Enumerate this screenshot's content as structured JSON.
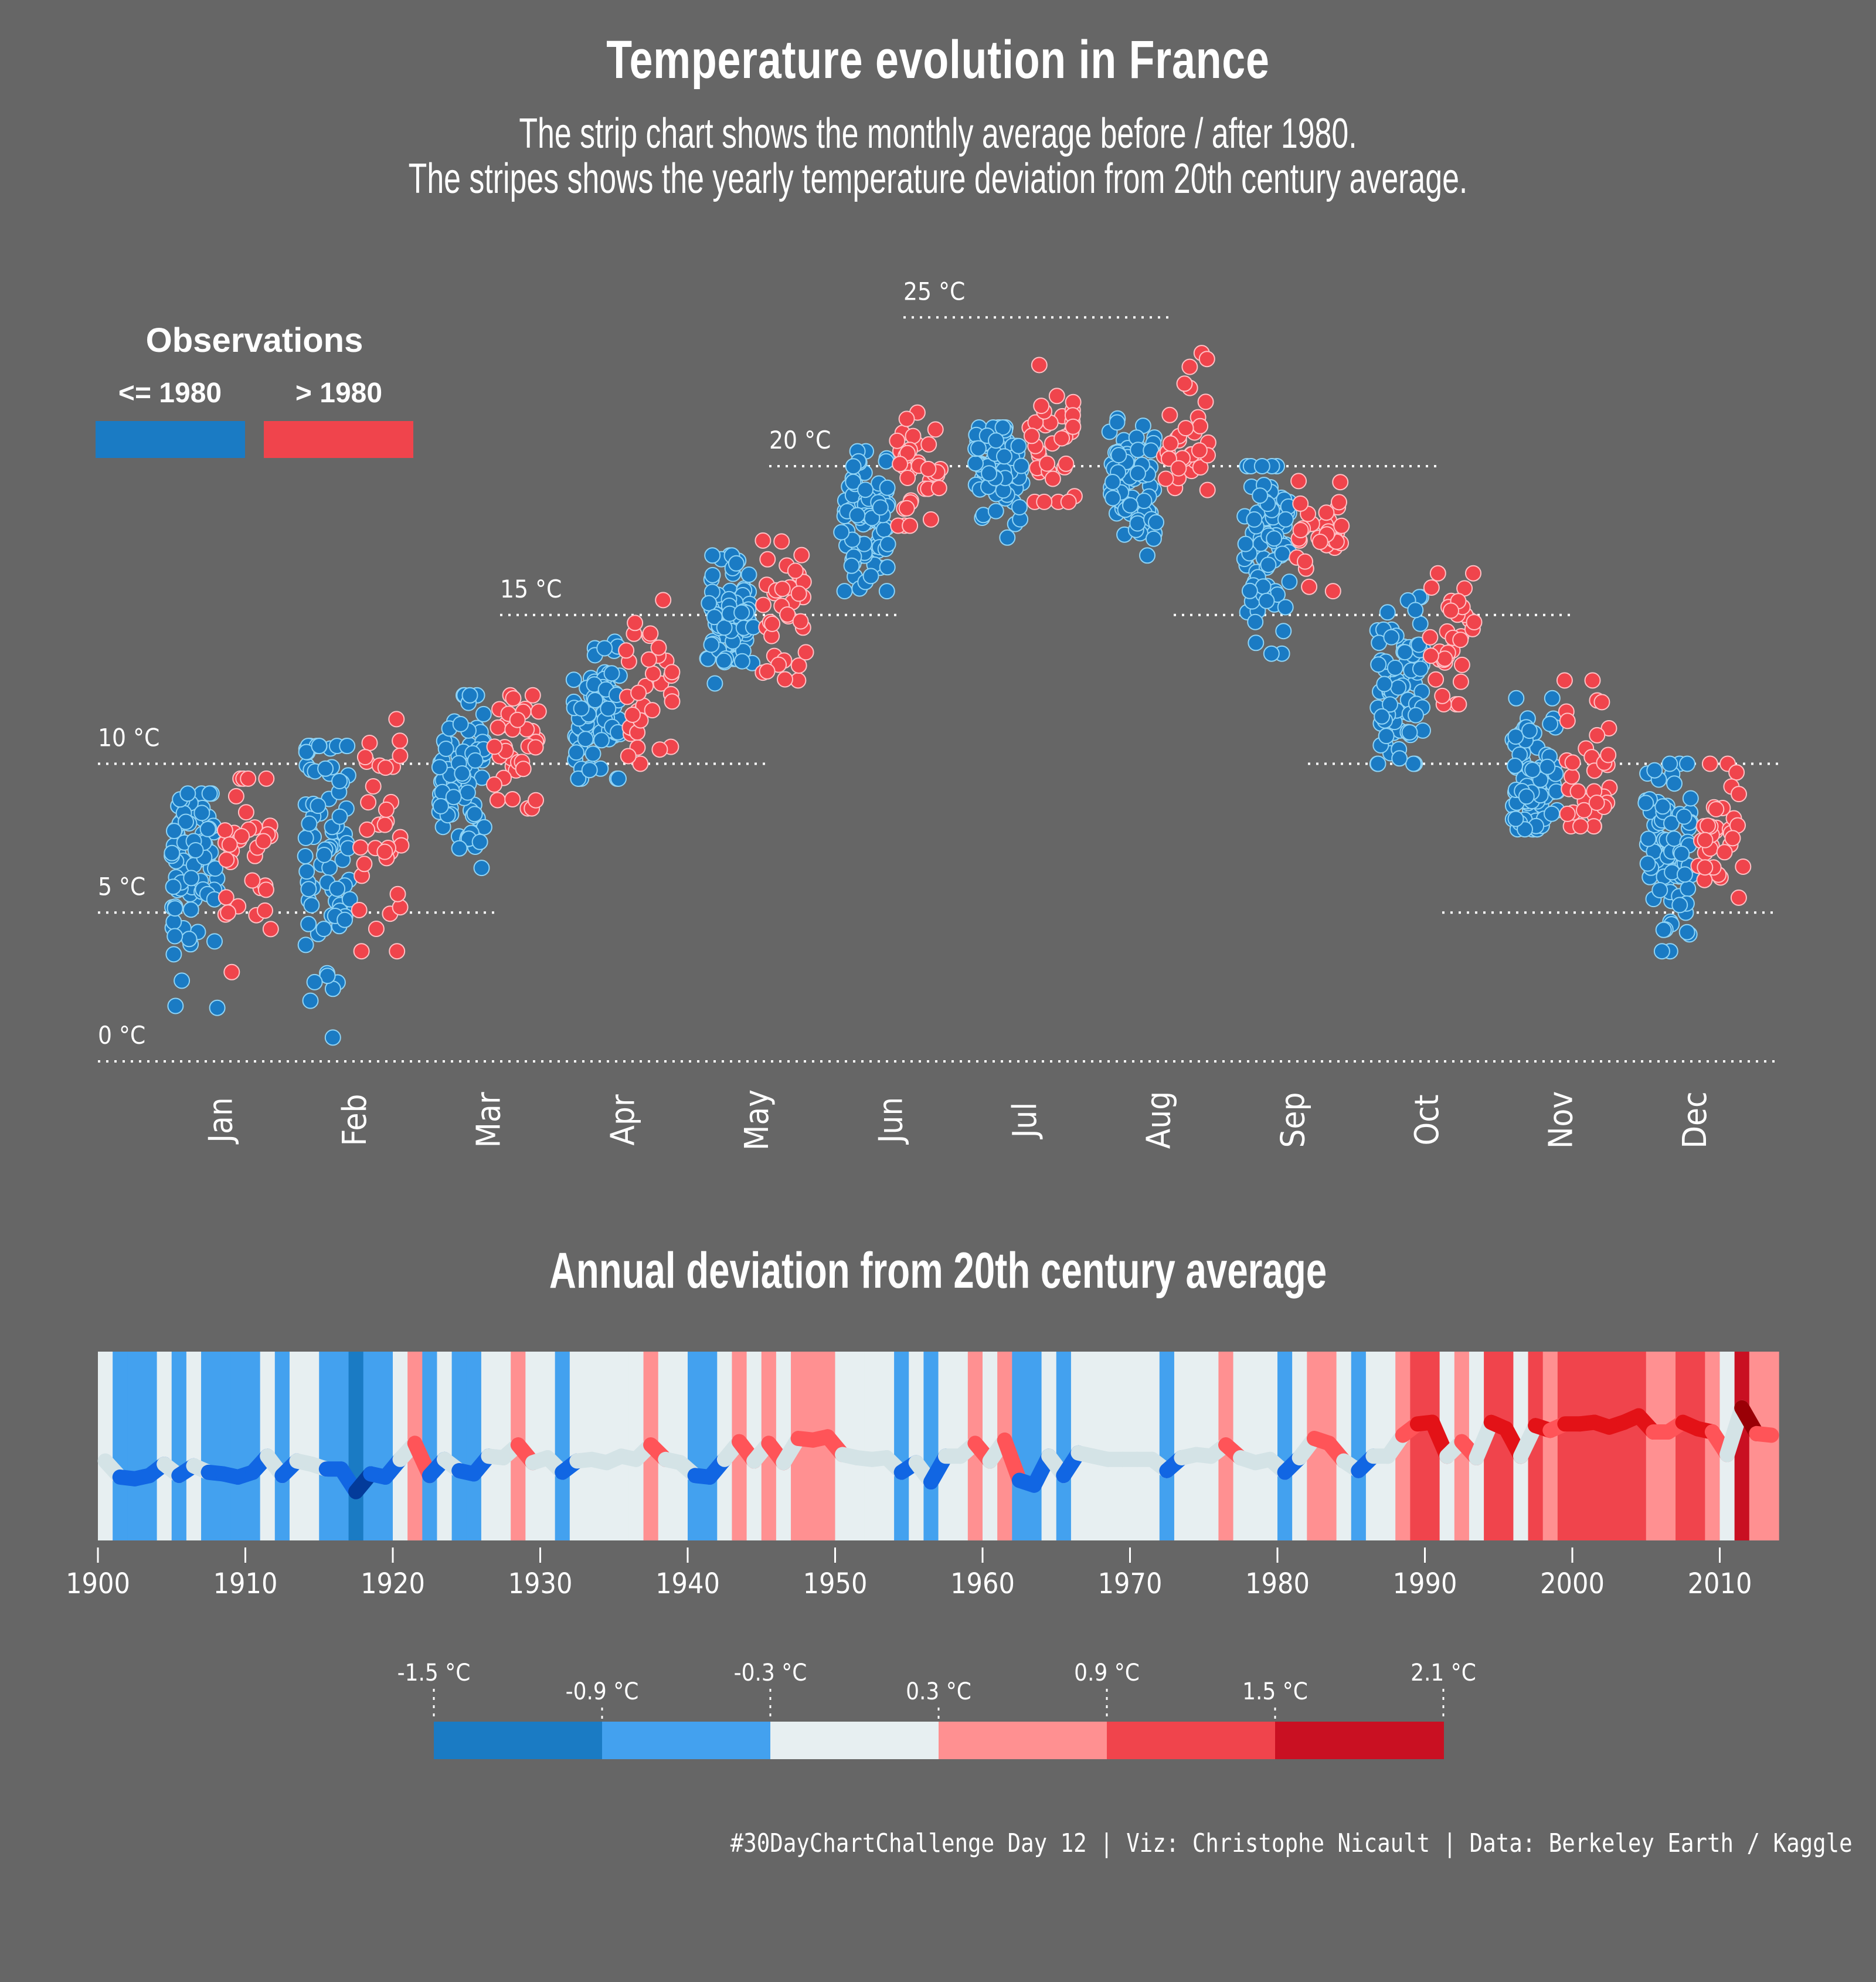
{
  "title": "Temperature evolution in France",
  "subtitle_lines": [
    "The strip chart shows the monthly average before / after 1980.",
    "The stripes shows the yearly temperature deviation from 20th century average."
  ],
  "legend": {
    "title": "Observations",
    "items": [
      {
        "label": "<= 1980",
        "color": "#1A7BC4"
      },
      {
        "label": "> 1980",
        "color": "#F0444C"
      }
    ]
  },
  "stripes_title": "Annual deviation from 20th century average",
  "caption": "#30DayChartChallenge Day 12 | Viz: Christophe Nicault | Data: Berkeley Earth / Kaggle",
  "chart_data": [
    {
      "type": "scatter",
      "subtype": "strip",
      "title": "Monthly average temperature in France",
      "xlabel": "",
      "ylabel": "",
      "ylim": [
        0,
        25
      ],
      "y_gridlines": [
        {
          "value": 0,
          "label": "0 °C"
        },
        {
          "value": 5,
          "label": "5 °C"
        },
        {
          "value": 10,
          "label": "10 °C"
        },
        {
          "value": 15,
          "label": "15 °C"
        },
        {
          "value": 20,
          "label": "20 °C"
        },
        {
          "value": 25,
          "label": "25 °C"
        }
      ],
      "categories": [
        "Jan",
        "Feb",
        "Mar",
        "Apr",
        "May",
        "Jun",
        "Jul",
        "Aug",
        "Sep",
        "Oct",
        "Nov",
        "Dec"
      ],
      "series": [
        {
          "name": "<= 1980",
          "color": "#1A7BC4",
          "stroke": "#8FD3F5",
          "summary_per_month": [
            {
              "month": "Jan",
              "min": 1.8,
              "max": 9.0,
              "mean": 6.4
            },
            {
              "month": "Feb",
              "min": 0.8,
              "max": 10.6,
              "mean": 7.0
            },
            {
              "month": "Mar",
              "min": 6.5,
              "max": 12.3,
              "mean": 9.6
            },
            {
              "month": "Apr",
              "min": 9.5,
              "max": 14.1,
              "mean": 11.6
            },
            {
              "month": "May",
              "min": 12.7,
              "max": 17.0,
              "mean": 15.0
            },
            {
              "month": "Jun",
              "min": 15.8,
              "max": 20.5,
              "mean": 18.1
            },
            {
              "month": "Jul",
              "min": 17.6,
              "max": 21.3,
              "mean": 19.8
            },
            {
              "month": "Aug",
              "min": 17.0,
              "max": 21.6,
              "mean": 19.5
            },
            {
              "month": "Sep",
              "min": 13.7,
              "max": 20.0,
              "mean": 17.2
            },
            {
              "month": "Oct",
              "min": 10.0,
              "max": 15.6,
              "mean": 12.8
            },
            {
              "month": "Nov",
              "min": 7.8,
              "max": 12.2,
              "mean": 9.6
            },
            {
              "month": "Dec",
              "min": 3.7,
              "max": 10.0,
              "mean": 7.0
            }
          ]
        },
        {
          "name": "> 1980",
          "color": "#F0444C",
          "stroke": "#FFC0C4",
          "summary_per_month": [
            {
              "month": "Jan",
              "min": 3.0,
              "max": 9.5,
              "mean": 7.0
            },
            {
              "month": "Feb",
              "min": 3.7,
              "max": 11.5,
              "mean": 8.0
            },
            {
              "month": "Mar",
              "min": 8.5,
              "max": 12.3,
              "mean": 10.6
            },
            {
              "month": "Apr",
              "min": 10.0,
              "max": 15.5,
              "mean": 12.6
            },
            {
              "month": "May",
              "min": 12.8,
              "max": 17.5,
              "mean": 15.3
            },
            {
              "month": "Jun",
              "min": 18.0,
              "max": 21.8,
              "mean": 19.4
            },
            {
              "month": "Jul",
              "min": 18.8,
              "max": 23.4,
              "mean": 20.9
            },
            {
              "month": "Aug",
              "min": 19.2,
              "max": 23.8,
              "mean": 20.8
            },
            {
              "month": "Sep",
              "min": 15.8,
              "max": 19.5,
              "mean": 17.9
            },
            {
              "month": "Oct",
              "min": 12.0,
              "max": 16.4,
              "mean": 14.2
            },
            {
              "month": "Nov",
              "min": 7.9,
              "max": 12.8,
              "mean": 10.2
            },
            {
              "month": "Dec",
              "min": 5.5,
              "max": 10.0,
              "mean": 8.0
            }
          ]
        }
      ],
      "legend": "top-left"
    },
    {
      "type": "heatmap",
      "subtype": "climate-stripes",
      "title": "Annual deviation from 20th century average",
      "xlabel": "",
      "x_ticks": [
        1900,
        1910,
        1920,
        1930,
        1940,
        1950,
        1960,
        1970,
        1980,
        1990,
        2000,
        2010
      ],
      "xlim": [
        1900,
        2014
      ],
      "color_scale": {
        "breaks": [
          -1.5,
          -0.9,
          -0.3,
          0.3,
          0.9,
          1.5,
          2.1
        ],
        "break_labels": [
          "-1.5 °C",
          "-0.9 °C",
          "-0.3 °C",
          "0.3 °C",
          "0.9 °C",
          "1.5 °C",
          "2.1 °C"
        ],
        "colors": [
          "#1A7BC4",
          "#43A1EF",
          "#E7EFF1",
          "#FF9091",
          "#F0444C",
          "#C91022"
        ],
        "line_colors": [
          "#033B9A",
          "#1166E3",
          "#D4E3E6",
          "#FF5458",
          "#E31217",
          "#9A0006"
        ]
      },
      "years": [
        1900,
        1901,
        1902,
        1903,
        1904,
        1905,
        1906,
        1907,
        1908,
        1909,
        1910,
        1911,
        1912,
        1913,
        1914,
        1915,
        1916,
        1917,
        1918,
        1919,
        1920,
        1921,
        1922,
        1923,
        1924,
        1925,
        1926,
        1927,
        1928,
        1929,
        1930,
        1931,
        1932,
        1933,
        1934,
        1935,
        1936,
        1937,
        1938,
        1939,
        1940,
        1941,
        1942,
        1943,
        1944,
        1945,
        1946,
        1947,
        1948,
        1949,
        1950,
        1951,
        1952,
        1953,
        1954,
        1955,
        1956,
        1957,
        1958,
        1959,
        1960,
        1961,
        1962,
        1963,
        1964,
        1965,
        1966,
        1967,
        1968,
        1969,
        1970,
        1971,
        1972,
        1973,
        1974,
        1975,
        1976,
        1977,
        1978,
        1979,
        1980,
        1981,
        1982,
        1983,
        1984,
        1985,
        1986,
        1987,
        1988,
        1989,
        1990,
        1991,
        1992,
        1993,
        1994,
        1995,
        1996,
        1997,
        1998,
        1999,
        2000,
        2001,
        2002,
        2003,
        2004,
        2005,
        2006,
        2007,
        2008,
        2009,
        2010,
        2011,
        2012,
        2013
      ],
      "deviation": [
        -0.1,
        -0.6,
        -0.65,
        -0.55,
        -0.2,
        -0.55,
        -0.25,
        -0.45,
        -0.5,
        -0.6,
        -0.45,
        0.05,
        -0.55,
        -0.1,
        -0.2,
        -0.35,
        -0.35,
        -1.05,
        -0.5,
        -0.6,
        -0.05,
        0.45,
        -0.55,
        -0.05,
        -0.4,
        -0.5,
        0.05,
        0.0,
        0.4,
        -0.15,
        0.0,
        -0.45,
        -0.1,
        -0.05,
        -0.15,
        0.05,
        -0.05,
        0.4,
        -0.05,
        -0.15,
        -0.55,
        -0.6,
        -0.05,
        0.5,
        -0.1,
        0.45,
        -0.15,
        0.6,
        0.55,
        0.65,
        0.1,
        0.0,
        -0.05,
        0.0,
        -0.45,
        -0.15,
        -0.75,
        0.05,
        0.05,
        0.45,
        -0.1,
        0.55,
        -0.7,
        -0.85,
        0.05,
        -0.55,
        0.15,
        0.05,
        -0.05,
        -0.05,
        -0.05,
        -0.05,
        -0.4,
        0.0,
        0.1,
        0.05,
        0.4,
        0.0,
        -0.15,
        -0.05,
        -0.45,
        0.0,
        0.6,
        0.45,
        -0.1,
        -0.4,
        0.05,
        0.05,
        0.7,
        1.05,
        1.1,
        0.05,
        0.5,
        0.0,
        1.1,
        0.9,
        0.05,
        1.0,
        0.85,
        1.05,
        1.05,
        1.1,
        0.95,
        1.1,
        1.3,
        0.8,
        0.8,
        1.1,
        0.9,
        0.8,
        0.1,
        1.55,
        0.75,
        0.7
      ]
    }
  ]
}
